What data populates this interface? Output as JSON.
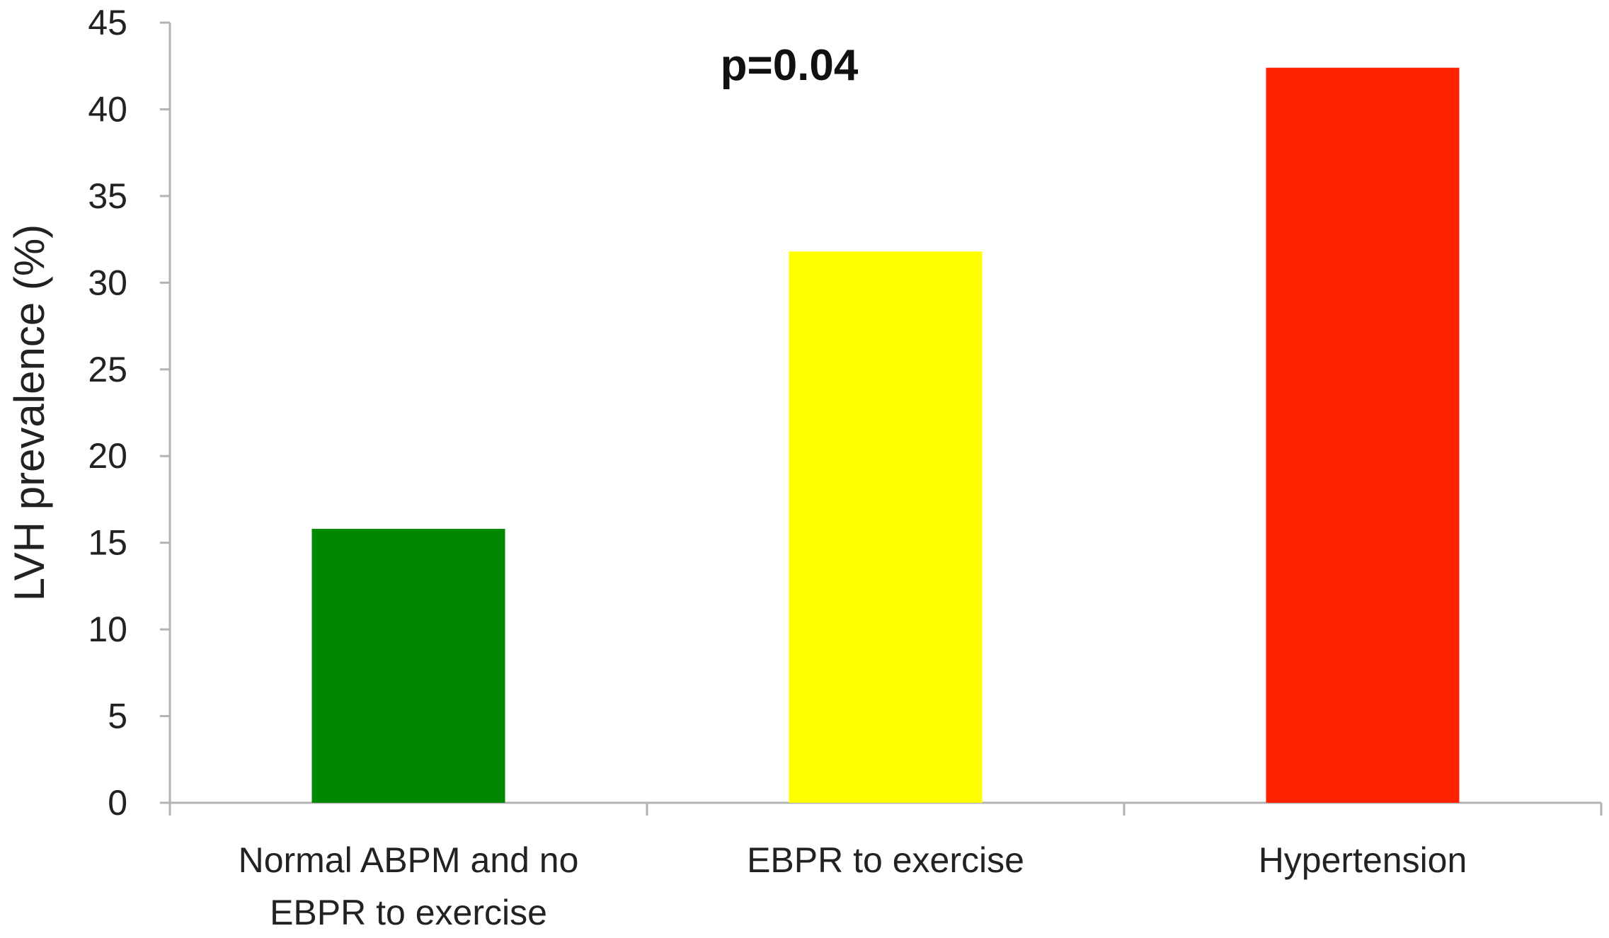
{
  "chart_data": {
    "type": "bar",
    "title": "",
    "annotation": "p=0.04",
    "xlabel": "",
    "ylabel": "LVH prevalence (%)",
    "ylim": [
      0,
      45
    ],
    "yticks": [
      0,
      5,
      10,
      15,
      20,
      25,
      30,
      35,
      40,
      45
    ],
    "grid": false,
    "legend": "none",
    "categories": [
      [
        "Normal ABPM and no",
        "EBPR to exercise"
      ],
      [
        "EBPR to exercise"
      ],
      [
        "Hypertension"
      ]
    ],
    "values": [
      15.8,
      31.8,
      42.4
    ],
    "colors": [
      "#008800",
      "#ffff00",
      "#ff2200"
    ],
    "axis_color": "#b3b3b3",
    "text_color": "#222222"
  }
}
